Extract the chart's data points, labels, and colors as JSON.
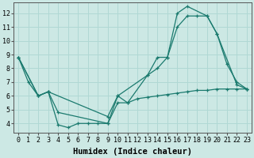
{
  "line1_x": [
    0,
    1,
    2,
    3,
    4,
    5,
    6,
    7,
    8,
    9,
    10,
    11,
    12,
    13,
    14,
    15,
    16,
    17,
    18,
    19,
    20,
    21,
    22,
    23
  ],
  "line1_y": [
    8.8,
    7.0,
    6.0,
    6.3,
    3.9,
    3.7,
    4.0,
    4.0,
    4.0,
    4.0,
    5.5,
    5.5,
    5.8,
    5.9,
    6.0,
    6.1,
    6.2,
    6.3,
    6.4,
    6.4,
    6.5,
    6.5,
    6.5,
    6.5
  ],
  "line2_x": [
    0,
    2,
    3,
    4,
    9,
    10,
    11,
    13,
    14,
    15,
    16,
    17,
    19,
    20,
    21,
    22,
    23
  ],
  "line2_y": [
    8.8,
    6.0,
    6.3,
    4.8,
    4.0,
    6.0,
    5.5,
    7.5,
    8.8,
    8.8,
    12.0,
    12.5,
    11.8,
    10.5,
    8.3,
    7.0,
    6.5
  ],
  "line3_x": [
    0,
    2,
    3,
    9,
    10,
    13,
    14,
    15,
    16,
    17,
    18,
    19,
    20,
    22,
    23
  ],
  "line3_y": [
    8.8,
    6.0,
    6.3,
    4.5,
    6.0,
    7.5,
    8.0,
    8.8,
    11.0,
    11.8,
    11.8,
    11.8,
    10.5,
    6.8,
    6.5
  ],
  "color": "#1a7a6e",
  "bg_color": "#cce8e4",
  "grid_color": "#b0d8d4",
  "xlabel": "Humidex (Indice chaleur)",
  "xlabel_fontsize": 7.5,
  "tick_fontsize": 6,
  "xlim": [
    -0.5,
    23.5
  ],
  "ylim": [
    3.3,
    12.8
  ],
  "yticks": [
    4,
    5,
    6,
    7,
    8,
    9,
    10,
    11,
    12
  ],
  "xticks": [
    0,
    1,
    2,
    3,
    4,
    5,
    6,
    7,
    8,
    9,
    10,
    11,
    12,
    13,
    14,
    15,
    16,
    17,
    18,
    19,
    20,
    21,
    22,
    23
  ]
}
